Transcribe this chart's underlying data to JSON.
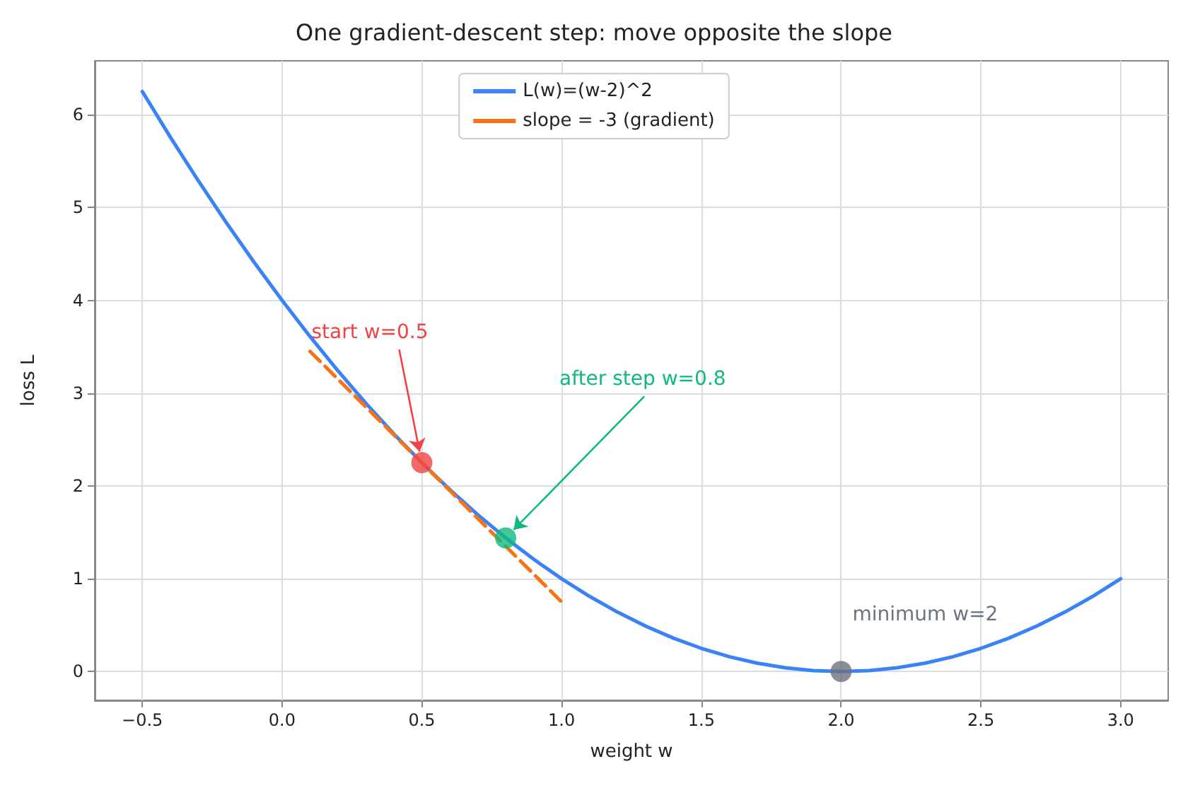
{
  "chart_data": {
    "type": "line",
    "title": "One gradient-descent step: move opposite the slope",
    "xlabel": "weight w",
    "ylabel": "loss L",
    "xlim": [
      -0.67,
      3.17
    ],
    "ylim": [
      -0.31,
      6.58
    ],
    "xticks": [
      {
        "value": -0.5,
        "label": "−0.5"
      },
      {
        "value": 0,
        "label": "0.0"
      },
      0.5,
      {
        "value": 1,
        "label": "1.0"
      },
      1.5,
      {
        "value": 2,
        "label": "2.0"
      },
      2.5,
      {
        "value": 3,
        "label": "3.0"
      }
    ],
    "yticks": [
      0,
      1,
      2,
      3,
      4,
      5,
      6
    ],
    "grid": true,
    "legend": "top",
    "series": [
      {
        "name": "L(w)=(w-2)^2",
        "color": "#3b82f6",
        "line_style": "solid",
        "marker": "none",
        "x": [
          -0.5,
          -0.4,
          -0.3,
          -0.2,
          -0.1,
          0,
          0.1,
          0.2,
          0.3,
          0.4,
          0.5,
          0.6,
          0.7,
          0.8,
          0.9,
          1.0,
          1.1,
          1.2,
          1.3,
          1.4,
          1.5,
          1.6,
          1.7,
          1.8,
          1.9,
          2.0,
          2.1,
          2.2,
          2.3,
          2.4,
          2.5,
          2.6,
          2.7,
          2.8,
          2.9,
          3.0
        ],
        "values": [
          6.25,
          5.76,
          5.29,
          4.84,
          4.41,
          4,
          3.61,
          3.24,
          2.89,
          2.56,
          2.25,
          1.96,
          1.69,
          1.44,
          1.21,
          1,
          0.81,
          0.64,
          0.49,
          0.36,
          0.25,
          0.16,
          0.09,
          0.04,
          0.01,
          0,
          0.01,
          0.04,
          0.09,
          0.16,
          0.25,
          0.36,
          0.49,
          0.64,
          0.81,
          1
        ]
      },
      {
        "type": "line",
        "name": "slope = -3 (gradient)",
        "color": "#f97316",
        "line_style": "dashed",
        "marker": "none",
        "x": [
          0.1,
          1.0
        ],
        "values": [
          3.45,
          0.75
        ]
      },
      {
        "type": "scatter",
        "marker": "circle",
        "x": [
          0.5,
          0.8,
          2.0
        ],
        "values": [
          2.25,
          1.44,
          0
        ],
        "colors": [
          "#ef4444",
          "#10b981",
          "#6b7280"
        ]
      }
    ],
    "annotations": [
      {
        "text": "start w=0.5",
        "x": 0.5,
        "y": 2.25
      },
      {
        "text": "after step w=0.8",
        "x": 0.8,
        "y": 1.44
      },
      "minimum w=2"
    ]
  }
}
